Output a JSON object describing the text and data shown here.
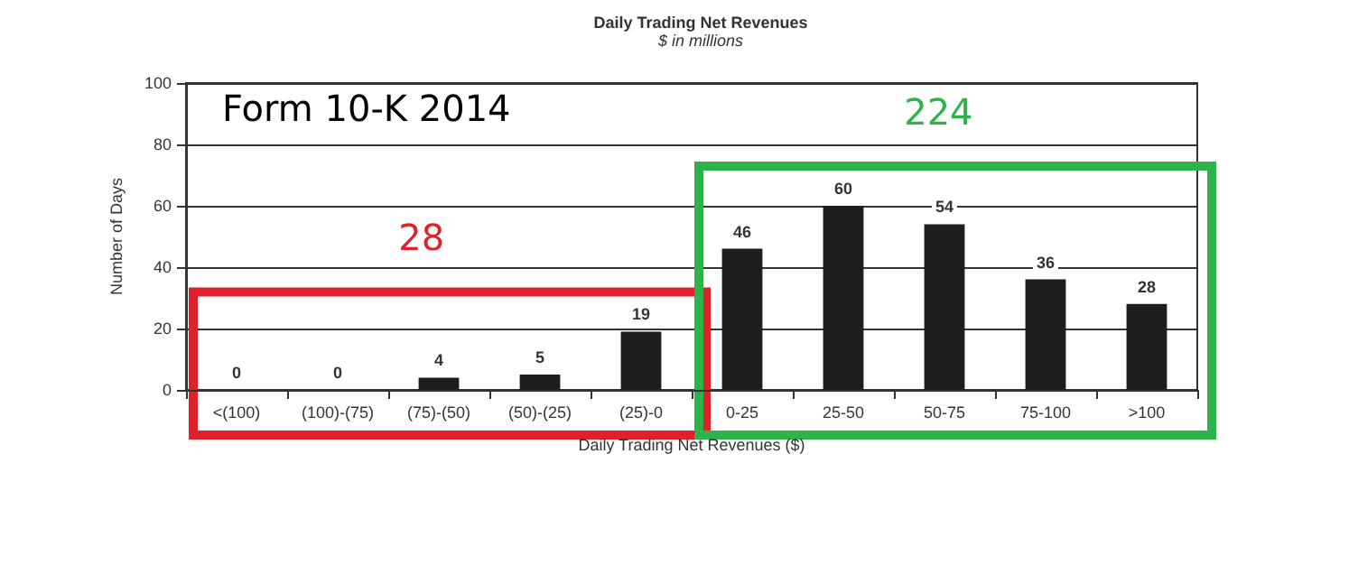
{
  "chart_data": {
    "type": "bar",
    "title": "Daily Trading Net Revenues",
    "subtitle": "$ in millions",
    "xlabel": "Daily Trading Net Revenues ($)",
    "ylabel": "Number of Days",
    "categories": [
      "<(100)",
      "(100)-(75)",
      "(75)-(50)",
      "(50)-(25)",
      "(25)-0",
      "0-25",
      "25-50",
      "50-75",
      "75-100",
      ">100"
    ],
    "values": [
      0,
      0,
      4,
      5,
      19,
      46,
      60,
      54,
      36,
      28
    ],
    "color": "#1e1e1e",
    "ylim": [
      0,
      100
    ],
    "yticks": [
      0,
      20,
      40,
      60,
      80,
      100
    ],
    "grid": "y",
    "data_labels": true,
    "annotations": [
      "Form 10-K 2014",
      "28",
      "224"
    ]
  }
}
